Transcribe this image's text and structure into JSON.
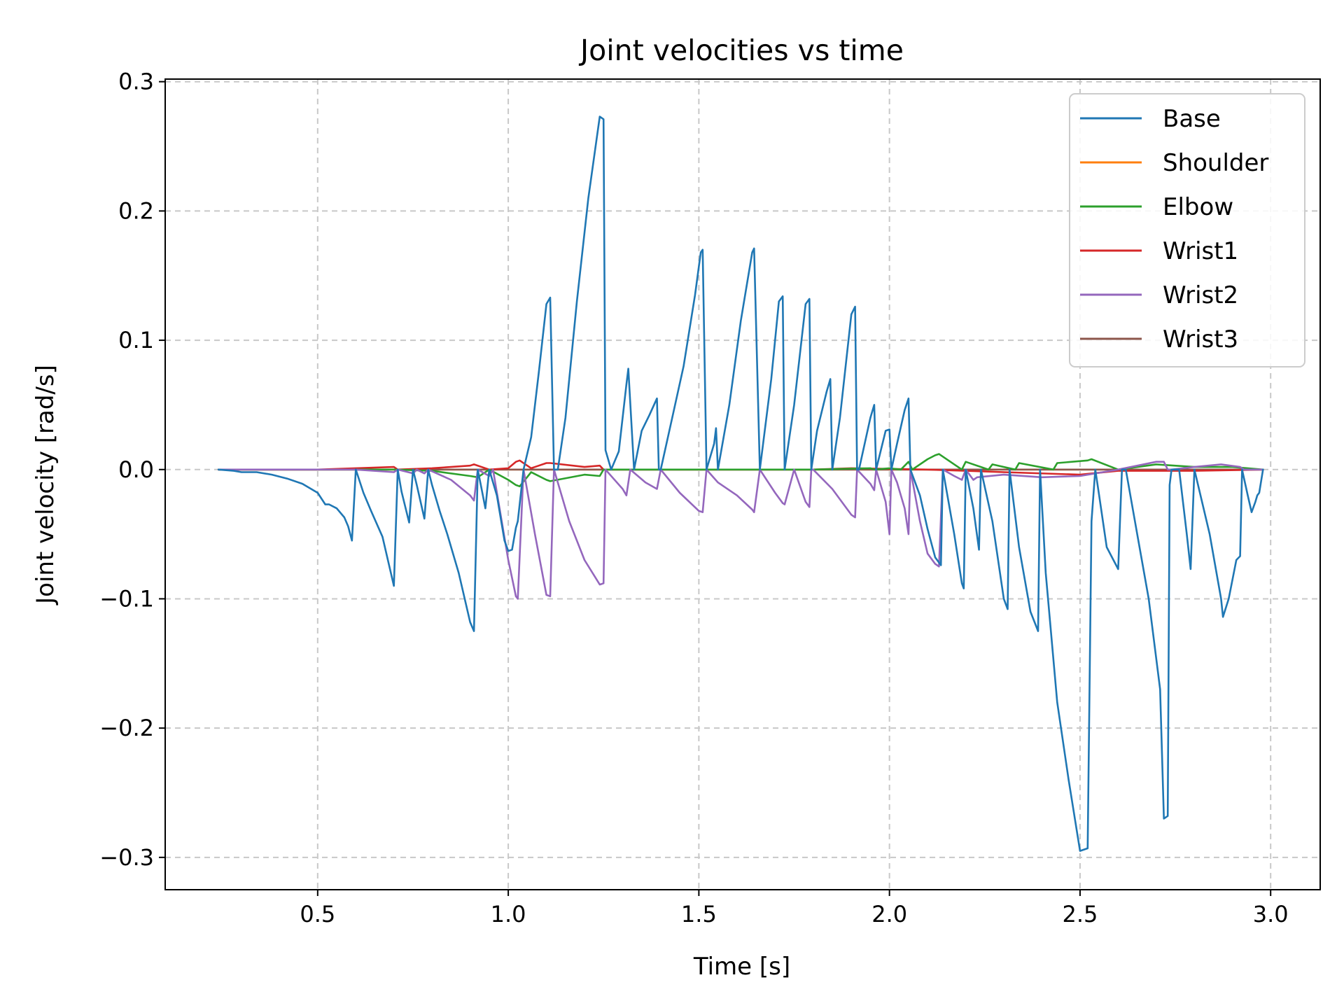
{
  "chart_data": {
    "type": "line",
    "title": "Joint velocities vs time",
    "xlabel": "Time [s]",
    "ylabel": "Joint velocity [rad/s]",
    "xlim": [
      0.1,
      3.13
    ],
    "ylim": [
      -0.325,
      0.302
    ],
    "xticks": [
      0.5,
      1.0,
      1.5,
      2.0,
      2.5,
      3.0
    ],
    "xtick_labels": [
      "0.5",
      "1.0",
      "1.5",
      "2.0",
      "2.5",
      "3.0"
    ],
    "yticks": [
      -0.3,
      -0.2,
      -0.1,
      0.0,
      0.1,
      0.2,
      0.3
    ],
    "ytick_labels": [
      "−0.3",
      "−0.2",
      "−0.1",
      "0.0",
      "0.1",
      "0.2",
      "0.3"
    ],
    "grid": true,
    "legend_position": "top-right",
    "series": [
      {
        "name": "Base",
        "color": "#1f77b4",
        "x": [
          0.24,
          0.28,
          0.3,
          0.32,
          0.34,
          0.38,
          0.42,
          0.46,
          0.5,
          0.52,
          0.53,
          0.55,
          0.57,
          0.58,
          0.59,
          0.6,
          0.62,
          0.64,
          0.67,
          0.7,
          0.71,
          0.72,
          0.74,
          0.75,
          0.76,
          0.78,
          0.79,
          0.8,
          0.82,
          0.84,
          0.87,
          0.9,
          0.91,
          0.92,
          0.93,
          0.94,
          0.95,
          0.97,
          0.99,
          1.0,
          1.01,
          1.02,
          1.025,
          1.04,
          1.06,
          1.08,
          1.1,
          1.11,
          1.12,
          1.13,
          1.15,
          1.18,
          1.21,
          1.24,
          1.25,
          1.255,
          1.27,
          1.29,
          1.31,
          1.315,
          1.33,
          1.35,
          1.37,
          1.39,
          1.395,
          1.4,
          1.43,
          1.46,
          1.49,
          1.505,
          1.51,
          1.52,
          1.54,
          1.545,
          1.55,
          1.58,
          1.61,
          1.64,
          1.645,
          1.66,
          1.69,
          1.71,
          1.72,
          1.725,
          1.75,
          1.78,
          1.79,
          1.795,
          1.81,
          1.835,
          1.845,
          1.85,
          1.87,
          1.9,
          1.91,
          1.915,
          1.92,
          1.95,
          1.96,
          1.965,
          1.99,
          2.0,
          2.005,
          2.02,
          2.04,
          2.05,
          2.055,
          2.08,
          2.1,
          2.12,
          2.135,
          2.14,
          2.17,
          2.19,
          2.195,
          2.2,
          2.22,
          2.235,
          2.24,
          2.27,
          2.3,
          2.31,
          2.315,
          2.34,
          2.37,
          2.39,
          2.395,
          2.41,
          2.44,
          2.47,
          2.5,
          2.52,
          2.53,
          2.54,
          2.55,
          2.57,
          2.6,
          2.61,
          2.62,
          2.65,
          2.68,
          2.71,
          2.72,
          2.73,
          2.735,
          2.74,
          2.76,
          2.78,
          2.79,
          2.8,
          2.84,
          2.87,
          2.875,
          2.89,
          2.91,
          2.92,
          2.925,
          2.94,
          2.95,
          2.96,
          2.965,
          2.97,
          2.98
        ],
        "y": [
          0.0,
          -0.001,
          -0.002,
          -0.002,
          -0.002,
          -0.004,
          -0.007,
          -0.011,
          -0.018,
          -0.027,
          -0.027,
          -0.03,
          -0.037,
          -0.044,
          -0.055,
          0.0,
          -0.018,
          -0.032,
          -0.052,
          -0.09,
          0.0,
          -0.017,
          -0.041,
          0.0,
          -0.012,
          -0.038,
          0.0,
          -0.012,
          -0.032,
          -0.05,
          -0.08,
          -0.118,
          -0.125,
          0.0,
          -0.015,
          -0.03,
          0.0,
          -0.02,
          -0.055,
          -0.063,
          -0.062,
          -0.045,
          -0.04,
          0.0,
          0.025,
          0.075,
          0.128,
          0.133,
          0.0,
          0.0,
          0.04,
          0.13,
          0.21,
          0.273,
          0.271,
          0.015,
          0.0,
          0.014,
          0.066,
          0.078,
          0.0,
          0.03,
          0.042,
          0.055,
          0.0,
          0.0,
          0.04,
          0.08,
          0.135,
          0.168,
          0.17,
          0.0,
          0.02,
          0.032,
          0.0,
          0.05,
          0.115,
          0.168,
          0.171,
          0.0,
          0.07,
          0.13,
          0.134,
          0.0,
          0.05,
          0.128,
          0.132,
          0.0,
          0.03,
          0.06,
          0.07,
          0.0,
          0.04,
          0.12,
          0.126,
          0.0,
          0.0,
          0.04,
          0.05,
          0.0,
          0.03,
          0.031,
          0.0,
          0.02,
          0.046,
          0.055,
          0.0,
          -0.02,
          -0.046,
          -0.068,
          -0.074,
          0.0,
          -0.05,
          -0.088,
          -0.092,
          0.0,
          -0.03,
          -0.062,
          0.0,
          -0.04,
          -0.1,
          -0.108,
          0.0,
          -0.06,
          -0.11,
          -0.125,
          0.0,
          -0.08,
          -0.18,
          -0.24,
          -0.295,
          -0.293,
          -0.04,
          0.0,
          -0.02,
          -0.06,
          -0.077,
          0.0,
          0.0,
          -0.05,
          -0.1,
          -0.17,
          -0.27,
          -0.268,
          -0.012,
          0.0,
          0.0,
          -0.05,
          -0.077,
          0.0,
          -0.05,
          -0.1,
          -0.114,
          -0.1,
          -0.07,
          -0.067,
          0.0,
          -0.02,
          -0.033,
          -0.025,
          -0.02,
          -0.018,
          0.0
        ]
      },
      {
        "name": "Shoulder",
        "color": "#ff7f0e",
        "x": [
          0.24,
          2.98
        ],
        "y": [
          0.0,
          0.0
        ]
      },
      {
        "name": "Elbow",
        "color": "#2ca02c",
        "x": [
          0.24,
          0.6,
          0.7,
          0.8,
          0.9,
          0.92,
          0.95,
          1.0,
          1.02,
          1.03,
          1.06,
          1.1,
          1.11,
          1.2,
          1.24,
          1.25,
          1.4,
          1.6,
          1.8,
          1.95,
          1.96,
          2.0,
          2.03,
          2.05,
          2.06,
          2.1,
          2.12,
          2.13,
          2.19,
          2.2,
          2.26,
          2.27,
          2.33,
          2.34,
          2.43,
          2.44,
          2.52,
          2.53,
          2.6,
          2.7,
          2.8,
          2.9,
          2.98
        ],
        "y": [
          0.0,
          0.0,
          0.0,
          -0.001,
          -0.005,
          -0.006,
          0.0,
          -0.008,
          -0.012,
          -0.013,
          -0.002,
          -0.008,
          -0.009,
          -0.004,
          -0.005,
          0.0,
          0.0,
          0.0,
          0.0,
          0.001,
          0.0,
          0.001,
          0.0,
          0.006,
          0.0,
          0.008,
          0.011,
          0.012,
          0.0,
          0.006,
          0.0,
          0.004,
          0.0,
          0.005,
          0.0,
          0.005,
          0.007,
          0.008,
          0.0,
          0.004,
          0.002,
          0.002,
          0.0
        ]
      },
      {
        "name": "Wrist1",
        "color": "#d62728",
        "x": [
          0.24,
          0.5,
          0.6,
          0.7,
          0.71,
          0.8,
          0.9,
          0.91,
          0.95,
          1.0,
          1.02,
          1.03,
          1.06,
          1.1,
          1.11,
          1.2,
          1.24,
          1.25,
          1.4,
          1.6,
          1.8,
          1.9,
          2.1,
          2.2,
          2.3,
          2.5,
          2.6,
          2.8,
          2.98
        ],
        "y": [
          0.0,
          0.0,
          0.001,
          0.002,
          0.0,
          0.001,
          0.003,
          0.004,
          0.0,
          0.001,
          0.006,
          0.007,
          0.001,
          0.005,
          0.005,
          0.002,
          0.003,
          0.0,
          0.0,
          0.0,
          0.0,
          0.001,
          0.0,
          -0.001,
          -0.002,
          -0.004,
          -0.001,
          -0.001,
          0.0
        ]
      },
      {
        "name": "Wrist2",
        "color": "#9467bd",
        "x": [
          0.24,
          0.6,
          0.7,
          0.71,
          0.75,
          0.76,
          0.78,
          0.79,
          0.85,
          0.9,
          0.91,
          0.92,
          0.95,
          0.96,
          1.0,
          1.02,
          1.025,
          1.04,
          1.07,
          1.1,
          1.11,
          1.12,
          1.16,
          1.2,
          1.24,
          1.25,
          1.255,
          1.3,
          1.31,
          1.32,
          1.36,
          1.39,
          1.4,
          1.45,
          1.5,
          1.51,
          1.52,
          1.55,
          1.6,
          1.64,
          1.645,
          1.66,
          1.7,
          1.72,
          1.725,
          1.75,
          1.78,
          1.79,
          1.795,
          1.8,
          1.85,
          1.9,
          1.91,
          1.915,
          1.95,
          1.96,
          1.965,
          1.99,
          2.0,
          2.005,
          2.02,
          2.04,
          2.05,
          2.055,
          2.08,
          2.1,
          2.12,
          2.13,
          2.14,
          2.17,
          2.19,
          2.2,
          2.22,
          2.23,
          2.3,
          2.4,
          2.5,
          2.6,
          2.7,
          2.72,
          2.73,
          2.74,
          2.8,
          2.87,
          2.92,
          2.93,
          2.98
        ],
        "y": [
          0.0,
          0.0,
          -0.002,
          0.0,
          -0.003,
          0.0,
          -0.003,
          0.0,
          -0.008,
          -0.02,
          -0.024,
          0.0,
          -0.005,
          0.0,
          -0.07,
          -0.098,
          -0.1,
          0.0,
          -0.05,
          -0.097,
          -0.098,
          0.0,
          -0.04,
          -0.07,
          -0.089,
          -0.088,
          0.0,
          -0.015,
          -0.02,
          0.0,
          -0.01,
          -0.015,
          0.0,
          -0.018,
          -0.032,
          -0.033,
          0.0,
          -0.01,
          -0.02,
          -0.031,
          -0.033,
          0.0,
          -0.018,
          -0.026,
          -0.027,
          0.0,
          -0.025,
          -0.029,
          0.0,
          0.0,
          -0.015,
          -0.035,
          -0.037,
          0.0,
          -0.011,
          -0.016,
          0.0,
          -0.025,
          -0.05,
          0.0,
          -0.01,
          -0.03,
          -0.05,
          0.0,
          -0.04,
          -0.065,
          -0.073,
          -0.075,
          0.0,
          -0.005,
          -0.008,
          0.0,
          -0.008,
          -0.006,
          -0.004,
          -0.006,
          -0.005,
          0.0,
          0.006,
          0.006,
          0.0,
          0.0,
          0.002,
          0.004,
          0.002,
          0.0,
          0.0
        ]
      },
      {
        "name": "Wrist3",
        "color": "#8c564b",
        "x": [
          0.24,
          2.98
        ],
        "y": [
          0.0,
          0.0
        ]
      }
    ]
  }
}
